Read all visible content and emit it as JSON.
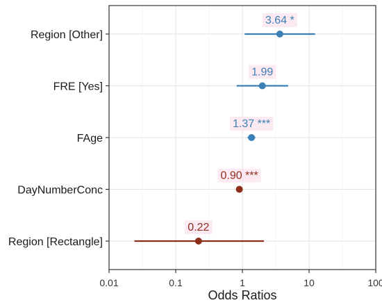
{
  "chart_data": {
    "type": "forest",
    "title": "",
    "xlabel": "Odds Ratios",
    "ylabel": "",
    "x_scale": "log10",
    "xlim": [
      0.01,
      100
    ],
    "x_ticks": [
      "0.01",
      "0.1",
      "1",
      "10",
      "100"
    ],
    "grid": true,
    "legend": "none",
    "colors": {
      "positive": "#3a7fb5",
      "negative": "#8b2e1b",
      "label_bg": "#fbe3ef"
    },
    "rows": [
      {
        "term": "Region [Other]",
        "estimate": 3.64,
        "ci_low": 1.08,
        "ci_high": 12.3,
        "label": "3.64 *",
        "direction": "positive"
      },
      {
        "term": "FRE [Yes]",
        "estimate": 1.99,
        "ci_low": 0.82,
        "ci_high": 4.85,
        "label": "1.99",
        "direction": "positive"
      },
      {
        "term": "FAge",
        "estimate": 1.37,
        "ci_low": 1.2,
        "ci_high": 1.56,
        "label": "1.37 ***",
        "direction": "positive"
      },
      {
        "term": "DayNumberConc",
        "estimate": 0.9,
        "ci_low": 0.86,
        "ci_high": 0.94,
        "label": "0.90 ***",
        "direction": "negative"
      },
      {
        "term": "Region [Rectangle]",
        "estimate": 0.22,
        "ci_low": 0.024,
        "ci_high": 2.1,
        "label": "0.22",
        "direction": "negative"
      }
    ]
  }
}
